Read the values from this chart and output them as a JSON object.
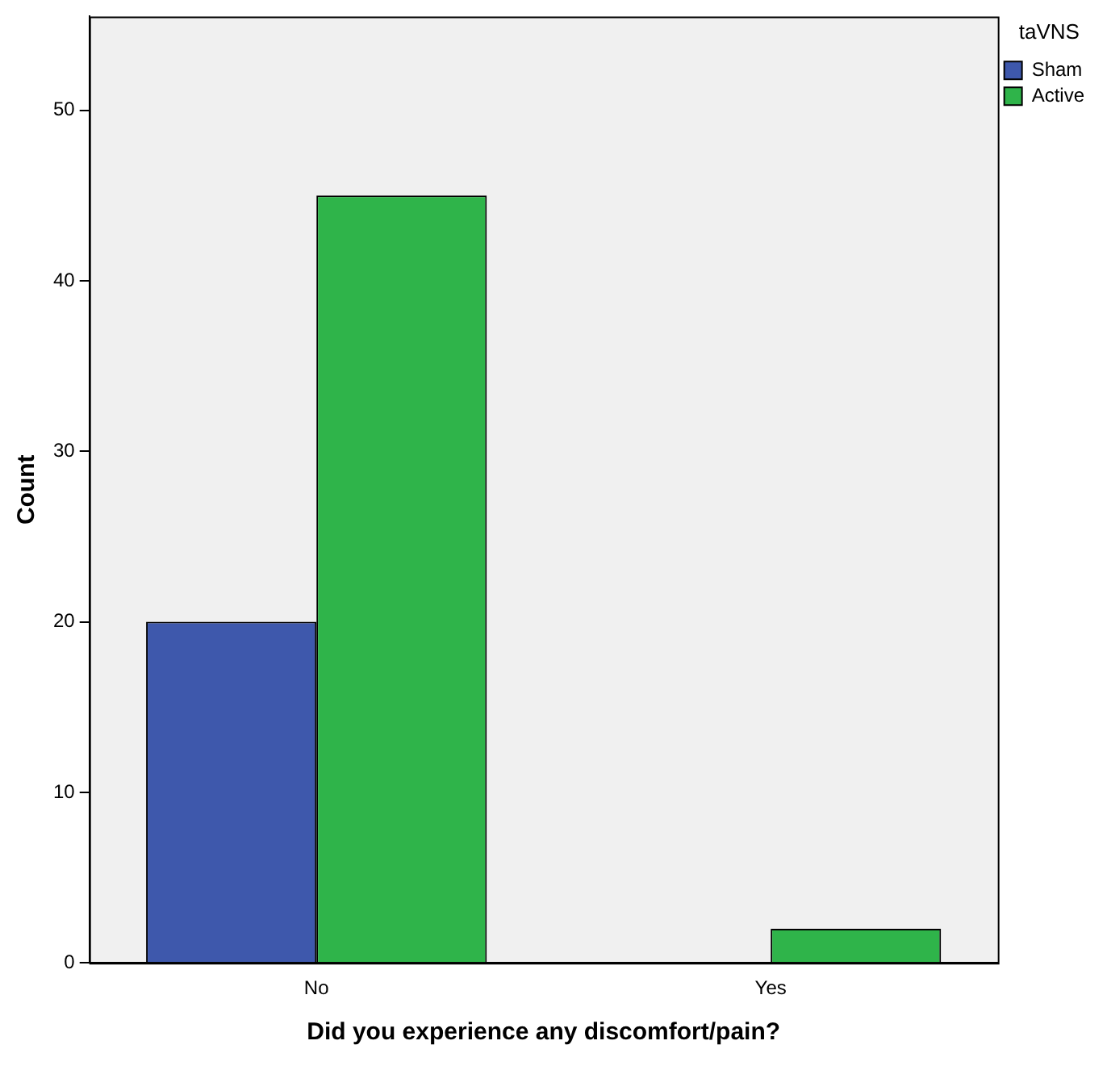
{
  "chart_data": {
    "type": "bar",
    "xlabel": "Did you experience any discomfort/pain?",
    "ylabel": "Count",
    "legend_title": "taVNS",
    "categories": [
      "No",
      "Yes"
    ],
    "series": [
      {
        "name": "Sham",
        "color": "#3e58ac",
        "values": [
          20,
          0
        ]
      },
      {
        "name": "Active",
        "color": "#2fb44a",
        "values": [
          45,
          2
        ]
      }
    ],
    "ylim": [
      0,
      55.5
    ],
    "yticks": [
      0,
      10,
      20,
      30,
      40,
      50
    ],
    "grid": false,
    "legend": "top right"
  }
}
